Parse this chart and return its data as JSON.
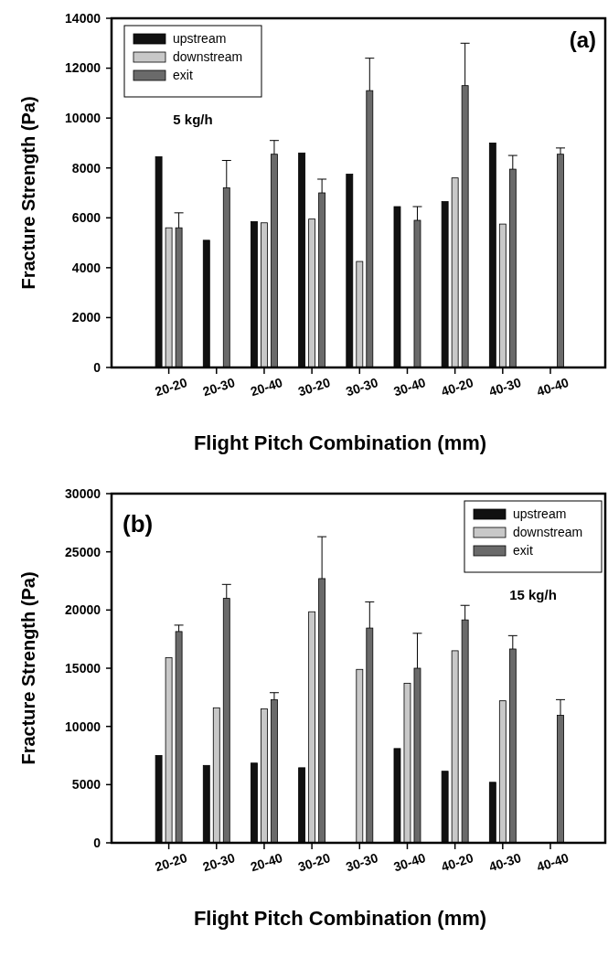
{
  "chart_data": [
    {
      "type": "bar",
      "xlabel": "Flight Pitch Combination (mm)",
      "ylabel": "Fracture Strength (Pa)",
      "categories": [
        "20-20",
        "20-30",
        "20-40",
        "30-20",
        "30-30",
        "30-40",
        "40-20",
        "40-30",
        "40-40"
      ],
      "series": [
        {
          "name": "upstream",
          "color": "#111111",
          "values": [
            8450,
            5100,
            5850,
            8600,
            7750,
            6450,
            6650,
            9000,
            null
          ]
        },
        {
          "name": "downstream",
          "color": "#c8c8c8",
          "values": [
            5600,
            null,
            5800,
            5950,
            4250,
            null,
            7600,
            5750,
            null
          ]
        },
        {
          "name": "exit",
          "color": "#6a6a6a",
          "values": [
            5600,
            7200,
            8550,
            7000,
            11100,
            5900,
            11300,
            7950,
            8550
          ],
          "errors": [
            [
              5600,
              6200
            ],
            [
              7200,
              8300
            ],
            [
              8550,
              9100
            ],
            [
              7000,
              7550
            ],
            [
              11100,
              12400
            ],
            [
              5900,
              6450
            ],
            [
              11300,
              13000
            ],
            [
              7950,
              8500
            ],
            [
              8550,
              8800
            ]
          ]
        }
      ],
      "ylim": [
        0,
        14000
      ],
      "yticks": [
        0,
        2000,
        4000,
        6000,
        8000,
        10000,
        12000,
        14000
      ],
      "legend": "top left",
      "grid": false,
      "annotations": [
        "(a)",
        "5 kg/h"
      ]
    },
    {
      "type": "bar",
      "xlabel": "Flight Pitch Combination (mm)",
      "ylabel": "Fracture Strength (Pa)",
      "categories": [
        "20-20",
        "20-30",
        "20-40",
        "30-20",
        "30-30",
        "30-40",
        "40-20",
        "40-30",
        "40-40"
      ],
      "series": [
        {
          "name": "upstream",
          "color": "#111111",
          "values": [
            7500,
            6650,
            6850,
            6450,
            null,
            8100,
            6150,
            5200,
            null
          ]
        },
        {
          "name": "downstream",
          "color": "#c8c8c8",
          "values": [
            15900,
            11600,
            11500,
            19850,
            14900,
            13700,
            16500,
            12200,
            null
          ]
        },
        {
          "name": "exit",
          "color": "#6a6a6a",
          "values": [
            18150,
            21000,
            12300,
            22700,
            18450,
            15000,
            19150,
            16650,
            10950
          ],
          "errors": [
            [
              18150,
              18700
            ],
            [
              21000,
              22200
            ],
            [
              12300,
              12900
            ],
            [
              22700,
              26300
            ],
            [
              18450,
              20700
            ],
            [
              15000,
              18000
            ],
            [
              19150,
              20400
            ],
            [
              16650,
              17800
            ],
            [
              10950,
              12300
            ]
          ]
        }
      ],
      "ylim": [
        0,
        30000
      ],
      "yticks": [
        0,
        5000,
        10000,
        15000,
        20000,
        25000,
        30000
      ],
      "legend": "top right",
      "grid": false,
      "annotations": [
        "(b)",
        "15 kg/h"
      ]
    }
  ]
}
